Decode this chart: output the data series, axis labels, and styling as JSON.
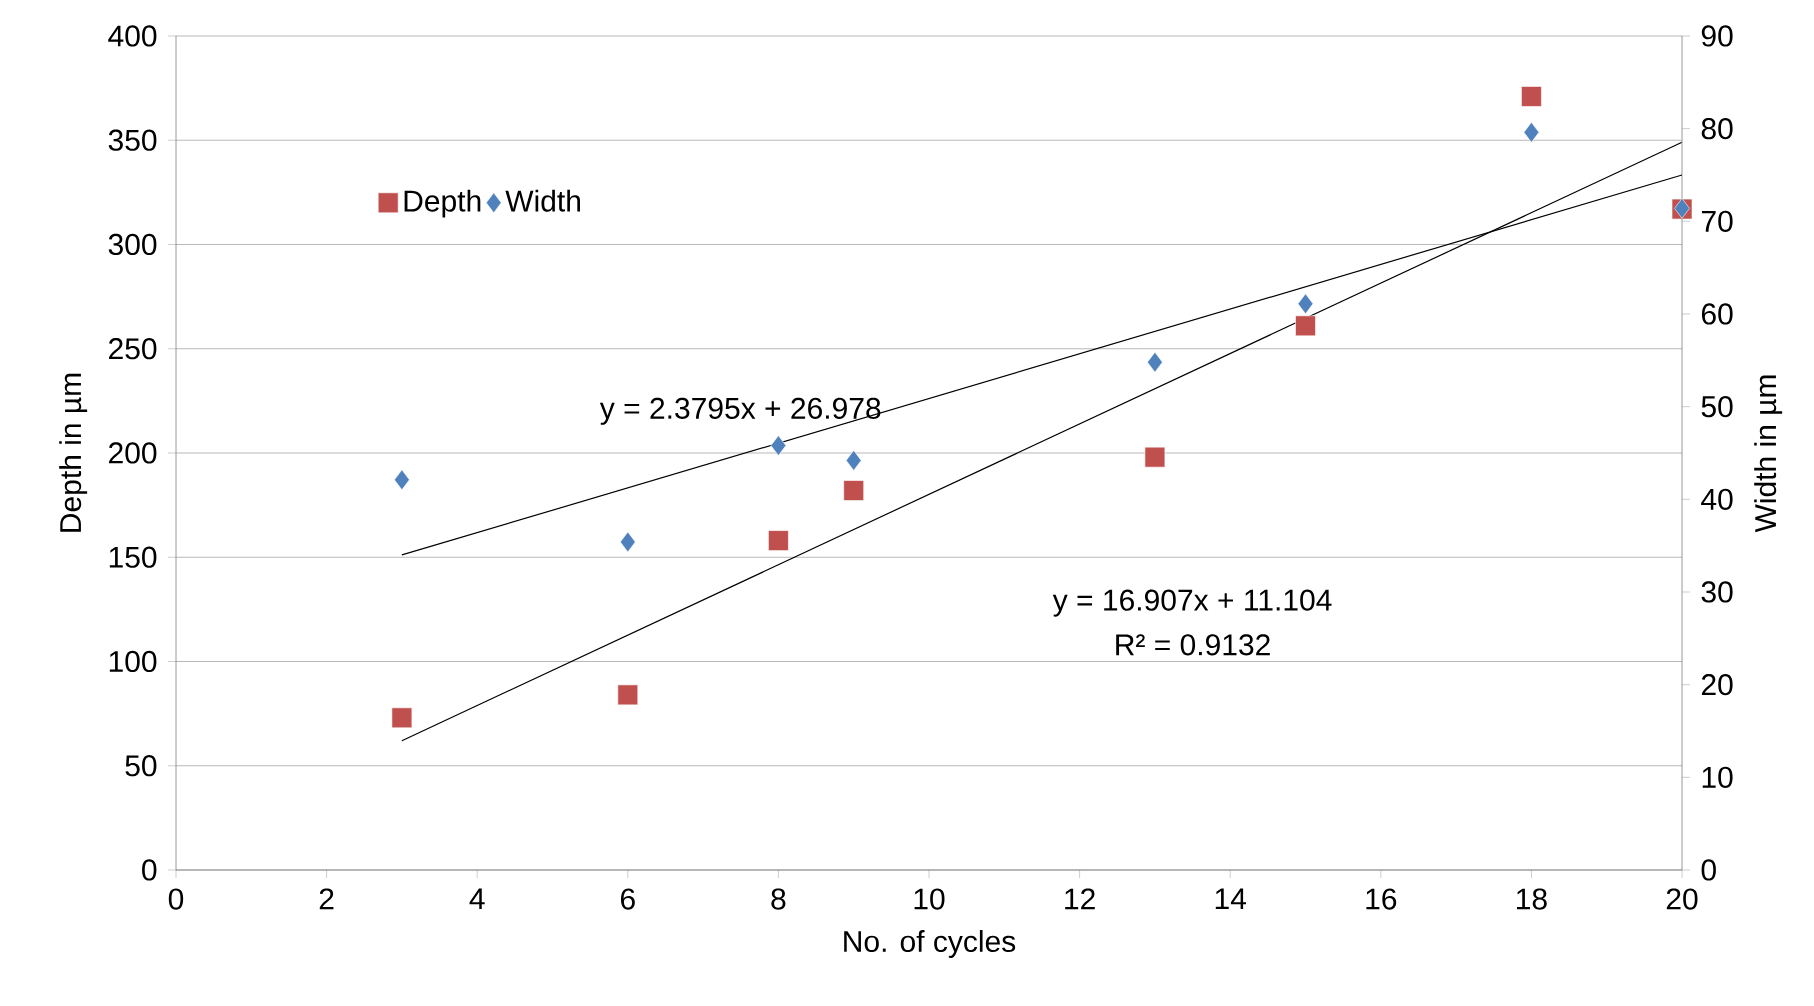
{
  "chart_data": {
    "type": "scatter",
    "xlabel": "No. of cycles",
    "ylabel": "Depth in µm",
    "y2label": "Width in µm",
    "xlim": [
      0,
      20
    ],
    "xticks": [
      0,
      2,
      4,
      6,
      8,
      10,
      12,
      14,
      16,
      18,
      20
    ],
    "ylim": [
      0,
      400
    ],
    "yticks": [
      0,
      50,
      100,
      150,
      200,
      250,
      300,
      350,
      400
    ],
    "y2lim": [
      0,
      90
    ],
    "y2ticks": [
      0,
      10,
      20,
      30,
      40,
      50,
      60,
      70,
      80,
      90
    ],
    "grid": "y",
    "legend": "top left",
    "series": [
      {
        "name": "Depth",
        "color": "#c0504d",
        "marker": "square",
        "x": [
          3,
          6,
          8,
          9,
          13,
          15,
          18,
          20
        ],
        "values": [
          73,
          84,
          158,
          182,
          198,
          261,
          371,
          317
        ]
      },
      {
        "name": "Width",
        "axis": "y2",
        "color": "#4f81bd",
        "marker": "diamond",
        "x": [
          3,
          6,
          8,
          9,
          13,
          15,
          18,
          20
        ],
        "values": [
          42.1,
          35.4,
          45.8,
          44.2,
          54.8,
          61.1,
          79.6,
          71.4
        ]
      },
      {
        "type": "line",
        "color": "#000000",
        "marker": "none",
        "x": [
          3,
          20
        ],
        "values": [
          62,
          349
        ]
      },
      {
        "type": "line",
        "axis": "y2",
        "color": "#000000",
        "marker": "none",
        "x": [
          3,
          20
        ],
        "values": [
          34,
          75
        ]
      }
    ],
    "annotations": [
      "y = 2.3795x + 26.978",
      "y = 16.907x + 11.104",
      "R² = 0.9132"
    ]
  }
}
